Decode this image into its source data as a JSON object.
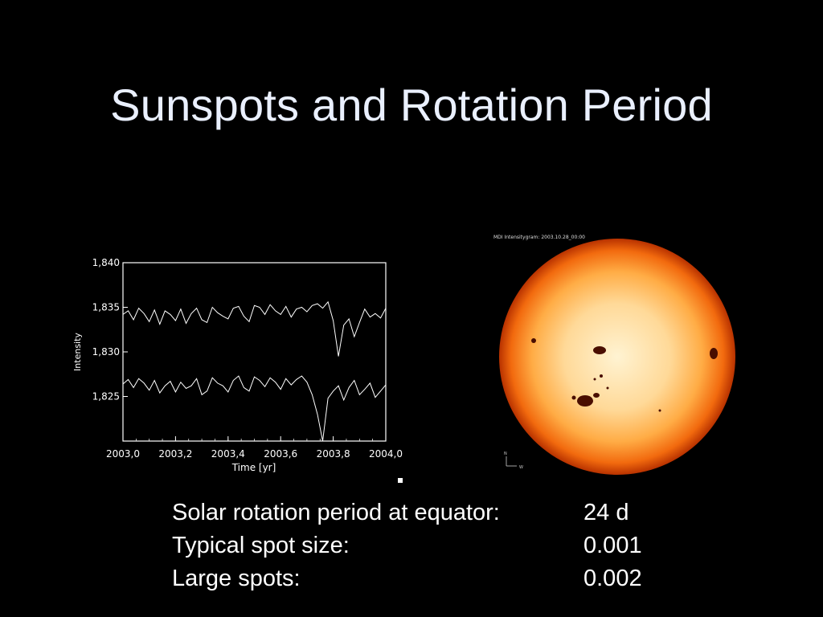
{
  "slide": {
    "title": "Sunspots and Rotation Period"
  },
  "chart_data": {
    "type": "line",
    "xlabel": "Time [yr]",
    "ylabel": "Intensity",
    "xlim": [
      2003.0,
      2004.0
    ],
    "ylim": [
      1820,
      1840
    ],
    "x_ticks": [
      "2003,0",
      "2003,2",
      "2003,4",
      "2003,6",
      "2003,8",
      "2004,0"
    ],
    "y_ticks": [
      "1,840",
      "1,835",
      "1,830",
      "1,825"
    ],
    "series": [
      {
        "x": [
          2003.0,
          2003.02,
          2003.04,
          2003.06,
          2003.08,
          2003.1,
          2003.12,
          2003.14,
          2003.16,
          2003.18,
          2003.2,
          2003.22,
          2003.24,
          2003.26,
          2003.28,
          2003.3,
          2003.32,
          2003.34,
          2003.36,
          2003.38,
          2003.4,
          2003.42,
          2003.44,
          2003.46,
          2003.48,
          2003.5,
          2003.52,
          2003.54,
          2003.56,
          2003.58,
          2003.6,
          2003.62,
          2003.64,
          2003.66,
          2003.68,
          2003.7,
          2003.72,
          2003.74,
          2003.76,
          2003.78,
          2003.8,
          2003.82,
          2003.84,
          2003.86,
          2003.88,
          2003.9,
          2003.92,
          2003.94,
          2003.96,
          2003.98,
          2004.0
        ],
        "values": [
          1834.2,
          1834.6,
          1833.6,
          1834.9,
          1834.3,
          1833.4,
          1834.7,
          1833.1,
          1834.6,
          1834.2,
          1833.5,
          1834.8,
          1833.2,
          1834.3,
          1834.9,
          1833.6,
          1833.3,
          1835.0,
          1834.4,
          1834.0,
          1833.7,
          1834.9,
          1835.1,
          1834.0,
          1833.4,
          1835.2,
          1835.0,
          1834.2,
          1835.3,
          1834.6,
          1834.2,
          1835.1,
          1833.9,
          1834.8,
          1835.0,
          1834.5,
          1835.2,
          1835.4,
          1834.9,
          1835.6,
          1833.5,
          1829.5,
          1833.0,
          1833.7,
          1831.7,
          1833.3,
          1834.8,
          1833.9,
          1834.3,
          1833.8,
          1834.9
        ]
      },
      {
        "x": [
          2003.0,
          2003.02,
          2003.04,
          2003.06,
          2003.08,
          2003.1,
          2003.12,
          2003.14,
          2003.16,
          2003.18,
          2003.2,
          2003.22,
          2003.24,
          2003.26,
          2003.28,
          2003.3,
          2003.32,
          2003.34,
          2003.36,
          2003.38,
          2003.4,
          2003.42,
          2003.44,
          2003.46,
          2003.48,
          2003.5,
          2003.52,
          2003.54,
          2003.56,
          2003.58,
          2003.6,
          2003.62,
          2003.64,
          2003.66,
          2003.68,
          2003.7,
          2003.72,
          2003.74,
          2003.76,
          2003.78,
          2003.8,
          2003.82,
          2003.84,
          2003.86,
          2003.88,
          2003.9,
          2003.92,
          2003.94,
          2003.96,
          2003.98,
          2004.0
        ],
        "values": [
          1826.4,
          1826.9,
          1826.0,
          1827.0,
          1826.5,
          1825.7,
          1826.8,
          1825.4,
          1826.2,
          1826.7,
          1825.5,
          1826.6,
          1825.9,
          1826.2,
          1827.0,
          1825.2,
          1825.6,
          1827.1,
          1826.5,
          1826.2,
          1825.5,
          1826.8,
          1827.3,
          1826.0,
          1825.6,
          1827.2,
          1826.8,
          1826.1,
          1827.1,
          1826.6,
          1825.8,
          1827.0,
          1826.3,
          1826.9,
          1827.3,
          1826.6,
          1825.2,
          1823.0,
          1820.0,
          1824.8,
          1825.6,
          1826.2,
          1824.6,
          1826.0,
          1826.8,
          1825.2,
          1825.8,
          1826.5,
          1824.9,
          1825.6,
          1826.3
        ]
      }
    ],
    "grid": false,
    "legend": "none"
  },
  "sun_image": {
    "caption": "MDI Intensitygram:  2003.10.28_00:00",
    "compass_n": "N",
    "compass_w": "W",
    "disk_colors": [
      "#fff0c8",
      "#ffc56a",
      "#ff8c1a",
      "#e04400",
      "#8a1c00"
    ]
  },
  "facts": [
    {
      "label": "Solar rotation period at equator:",
      "value": "24 d"
    },
    {
      "label": "Typical spot size:",
      "value": "0.001"
    },
    {
      "label": "Large spots:",
      "value": "0.002"
    }
  ]
}
